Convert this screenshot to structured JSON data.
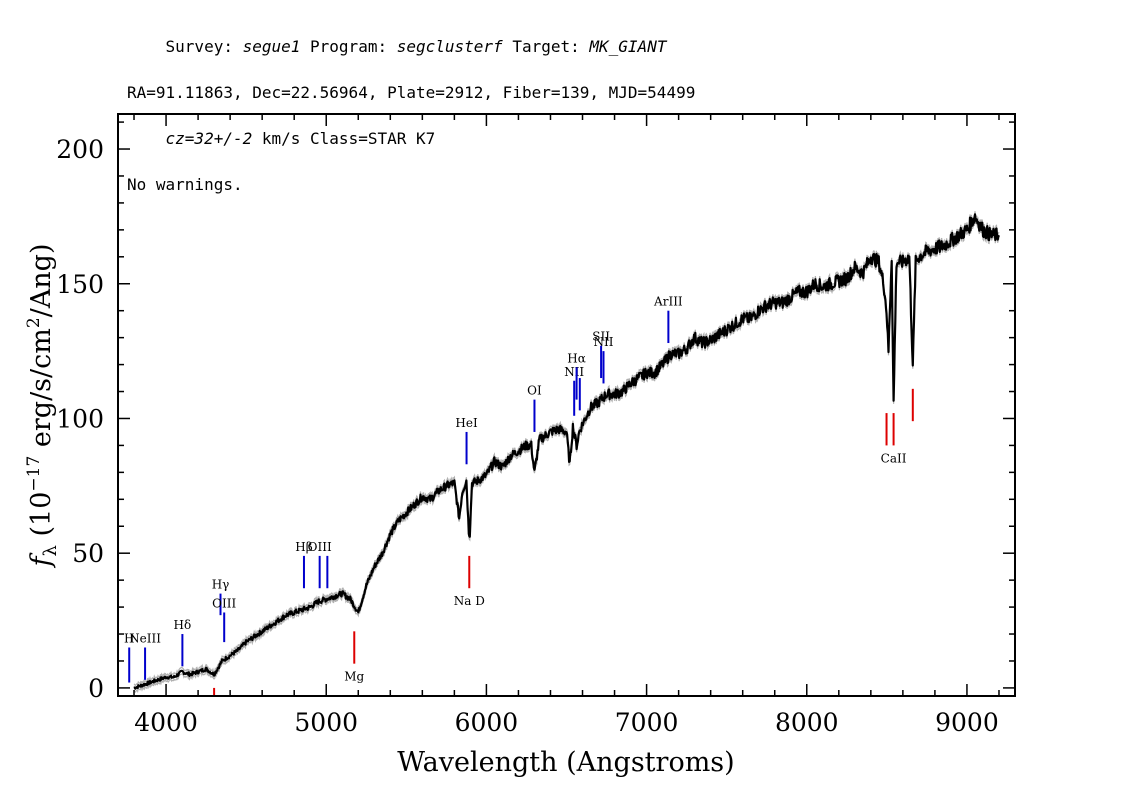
{
  "header": {
    "line1": [
      {
        "text": "Survey: ",
        "italic": false
      },
      {
        "text": "segue1",
        "italic": true
      },
      {
        "text": " Program: ",
        "italic": false
      },
      {
        "text": "segclusterf",
        "italic": true
      },
      {
        "text": " Target: ",
        "italic": false
      },
      {
        "text": "MK_GIANT",
        "italic": true
      }
    ],
    "line2": "RA=91.11863, Dec=22.56964, Plate=2912, Fiber=139, MJD=54499",
    "line3": [
      {
        "text": "cz=32+/-2",
        "italic": true
      },
      {
        "text": " km/s Class=STAR K7",
        "italic": false
      }
    ],
    "line4": "No warnings."
  },
  "chart_data": {
    "type": "line",
    "title": "",
    "xlabel": "Wavelength (Angstroms)",
    "ylabel": "f_λ (10^-17 erg/s/cm^2/Ang)",
    "ylabel_parts": {
      "f": "f",
      "sub": "λ",
      "pre": " (10",
      "sup1": "−17",
      "mid": " erg/s/cm",
      "sup2": "2",
      "post": "/Ang)"
    },
    "xlim": [
      3700,
      9300
    ],
    "ylim": [
      -3,
      213
    ],
    "xticks": [
      4000,
      5000,
      6000,
      7000,
      8000,
      9000
    ],
    "yticks": [
      0,
      50,
      100,
      150,
      200
    ],
    "grid": false,
    "legend": "none",
    "colors": {
      "flux": "#000000",
      "error": "#b0b0b0",
      "emission": "#0000cc",
      "absorption": "#dd0000"
    },
    "series": [
      {
        "role": "flux",
        "x": [
          3800,
          3850,
          3900,
          3950,
          4000,
          4050,
          4100,
          4150,
          4200,
          4250,
          4300,
          4350,
          4400,
          4450,
          4500,
          4550,
          4600,
          4650,
          4700,
          4750,
          4800,
          4850,
          4900,
          4950,
          5000,
          5050,
          5100,
          5150,
          5200,
          5250,
          5300,
          5350,
          5400,
          5450,
          5500,
          5550,
          5600,
          5650,
          5700,
          5750,
          5800,
          5830,
          5850,
          5875,
          5890,
          5896,
          5910,
          5950,
          6000,
          6050,
          6100,
          6150,
          6200,
          6250,
          6280,
          6300,
          6330,
          6400,
          6450,
          6500,
          6520,
          6540,
          6563,
          6580,
          6600,
          6650,
          6700,
          6750,
          6800,
          6850,
          6900,
          6950,
          7000,
          7050,
          7100,
          7150,
          7200,
          7250,
          7300,
          7350,
          7400,
          7450,
          7500,
          7550,
          7600,
          7650,
          7700,
          7750,
          7800,
          7850,
          7900,
          7950,
          8000,
          8050,
          8100,
          8150,
          8200,
          8250,
          8300,
          8350,
          8400,
          8450,
          8480,
          8498,
          8510,
          8530,
          8542,
          8560,
          8600,
          8640,
          8662,
          8680,
          8700,
          8750,
          8800,
          8850,
          8900,
          8950,
          9000,
          9050,
          9100,
          9150,
          9200
        ],
        "y": [
          0,
          1,
          2,
          3,
          4,
          4,
          6,
          5,
          6,
          7,
          5,
          10,
          12,
          14,
          17,
          19,
          21,
          23,
          25,
          27,
          28,
          29,
          30,
          32,
          33,
          34,
          35,
          33,
          28,
          38,
          45,
          50,
          57,
          62,
          65,
          68,
          71,
          70,
          73,
          75,
          76,
          63,
          73,
          77,
          58,
          57,
          76,
          77,
          79,
          84,
          82,
          86,
          88,
          90,
          90,
          80,
          92,
          95,
          96,
          95,
          83,
          97,
          90,
          95,
          98,
          104,
          106,
          109,
          109,
          110,
          113,
          115,
          117,
          117,
          120,
          124,
          124,
          126,
          130,
          128,
          129,
          131,
          133,
          135,
          137,
          137,
          140,
          142,
          143,
          143,
          145,
          147,
          147,
          150,
          149,
          150,
          151,
          152,
          156,
          154,
          160,
          158,
          150,
          140,
          125,
          160,
          106,
          158,
          158,
          160,
          120,
          158,
          160,
          162,
          163,
          164,
          166,
          168,
          170,
          175,
          170,
          168,
          168
        ]
      }
    ],
    "lines": [
      {
        "label": "H",
        "x": 3770,
        "kind": "emission",
        "lo": 2,
        "hi": 15
      },
      {
        "label": "NeIII",
        "x": 3869,
        "kind": "emission",
        "lo": 3,
        "hi": 15
      },
      {
        "label": "Hδ",
        "x": 4102,
        "kind": "emission",
        "lo": 8,
        "hi": 20
      },
      {
        "label": "",
        "x": 4300,
        "kind": "absorption",
        "lo": -3,
        "hi": 0
      },
      {
        "label": "Hγ",
        "x": 4340,
        "kind": "emission",
        "lo": 27,
        "hi": 35
      },
      {
        "label": "OIII",
        "x": 4363,
        "kind": "emission",
        "lo": 17,
        "hi": 28
      },
      {
        "label": "Hβ",
        "x": 4861,
        "kind": "emission",
        "lo": 37,
        "hi": 49
      },
      {
        "label": "OIII",
        "x": 4959,
        "kind": "emission",
        "lo": 37,
        "hi": 49
      },
      {
        "label": "",
        "x": 5007,
        "kind": "emission",
        "lo": 37,
        "hi": 49
      },
      {
        "label": "Mg",
        "x": 5175,
        "kind": "absorption",
        "lo": 9,
        "hi": 21
      },
      {
        "label": "HeI",
        "x": 5876,
        "kind": "emission",
        "lo": 83,
        "hi": 95
      },
      {
        "label": "Na D",
        "x": 5893,
        "kind": "absorption",
        "lo": 37,
        "hi": 49
      },
      {
        "label": "OI",
        "x": 6300,
        "kind": "emission",
        "lo": 95,
        "hi": 107
      },
      {
        "label": "NII",
        "x": 6548,
        "kind": "emission",
        "lo": 101,
        "hi": 114
      },
      {
        "label": "Hα",
        "x": 6563,
        "kind": "emission",
        "lo": 107,
        "hi": 119
      },
      {
        "label": "",
        "x": 6583,
        "kind": "emission",
        "lo": 103,
        "hi": 115
      },
      {
        "label": "SII",
        "x": 6716,
        "kind": "emission",
        "lo": 115,
        "hi": 127
      },
      {
        "label": "NII",
        "x": 6731,
        "kind": "emission",
        "lo": 113,
        "hi": 125
      },
      {
        "label": "ArIII",
        "x": 7136,
        "kind": "emission",
        "lo": 128,
        "hi": 140
      },
      {
        "label": "",
        "x": 8498,
        "kind": "absorption",
        "lo": 90,
        "hi": 102
      },
      {
        "label": "CaII",
        "x": 8542,
        "kind": "absorption",
        "lo": 90,
        "hi": 102
      },
      {
        "label": "",
        "x": 8662,
        "kind": "absorption",
        "lo": 99,
        "hi": 111
      }
    ]
  }
}
